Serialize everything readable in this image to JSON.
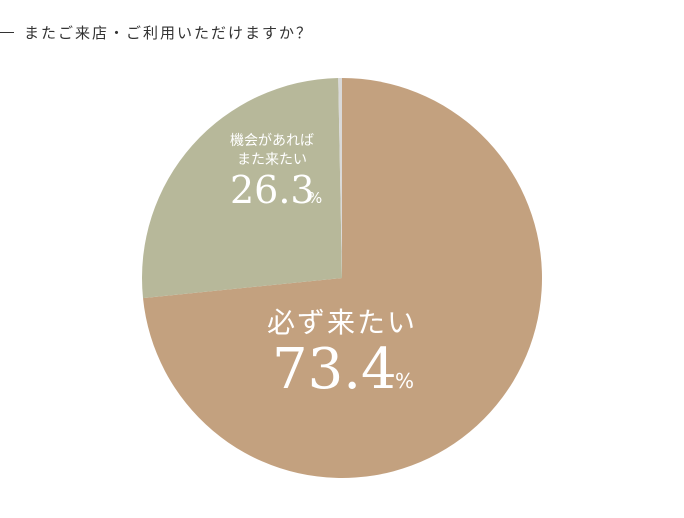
{
  "question": "またご来店・ご利用いただけますか？",
  "chart_data": {
    "type": "pie",
    "slices": [
      {
        "label": "必ず来たい",
        "value": 73.4,
        "value_text": "73.4",
        "color": "#c3a17f"
      },
      {
        "label_lines": [
          "機会があれば",
          "また来たい"
        ],
        "value": 26.3,
        "value_text": "26.3",
        "color": "#b7b89a"
      },
      {
        "value": 0.3,
        "color": "#d9d9d9"
      }
    ],
    "unit": "%"
  }
}
